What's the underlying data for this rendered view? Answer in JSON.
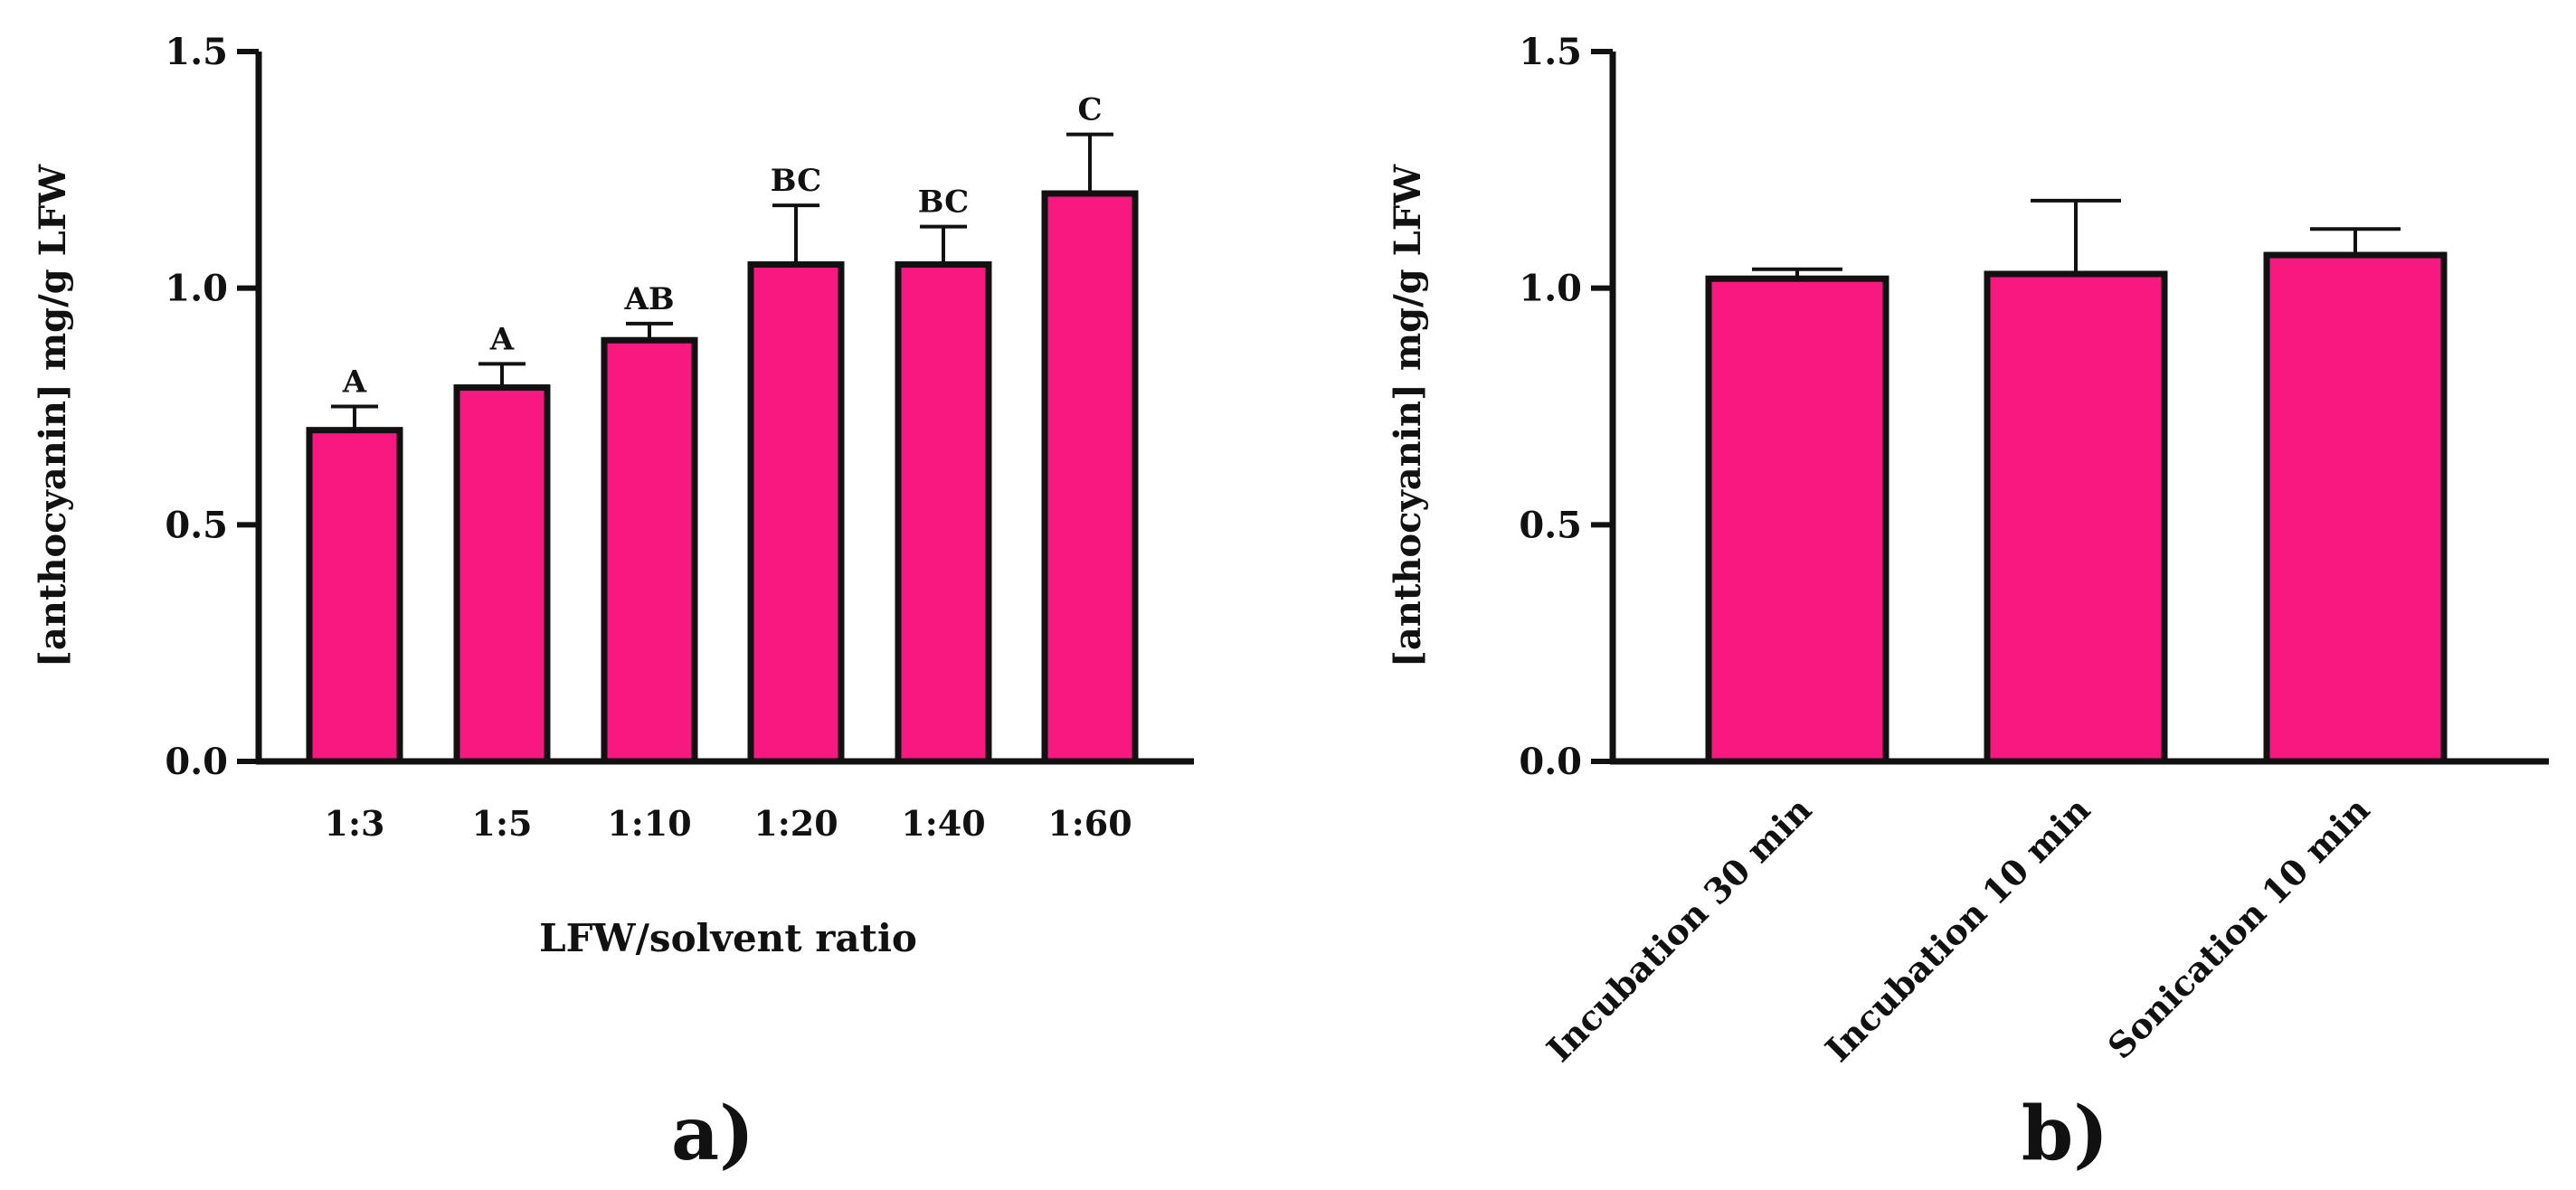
{
  "chart_data": [
    {
      "type": "bar",
      "panel_label": "a)",
      "title": "",
      "xlabel": "LFW/solvent ratio",
      "ylabel": "[anthocyanin] mg/g LFW",
      "ylim": [
        0,
        1.5
      ],
      "yticks": [
        "0.0",
        "0.5",
        "1.0",
        "1.5"
      ],
      "categories": [
        "1:3",
        "1:5",
        "1:10",
        "1:20",
        "1:40",
        "1:60"
      ],
      "values": [
        0.7,
        0.79,
        0.89,
        1.05,
        1.05,
        1.2
      ],
      "errors": [
        0.05,
        0.05,
        0.035,
        0.125,
        0.08,
        0.125
      ],
      "significance": [
        "A",
        "A",
        "AB",
        "BC",
        "BC",
        "C"
      ]
    },
    {
      "type": "bar",
      "panel_label": "b)",
      "title": "",
      "xlabel": "",
      "ylabel": "[anthocyanin] mg/g LFW",
      "ylim": [
        0,
        1.5
      ],
      "yticks": [
        "0.0",
        "0.5",
        "1.0",
        "1.5"
      ],
      "categories": [
        "Incubation 30 min",
        "Incubation 10 min",
        "Sonication 10 min"
      ],
      "values": [
        1.02,
        1.03,
        1.07
      ],
      "errors": [
        0.02,
        0.155,
        0.055
      ],
      "significance": []
    }
  ],
  "colors": {
    "bar": "#f7197f",
    "stroke": "#111111"
  }
}
